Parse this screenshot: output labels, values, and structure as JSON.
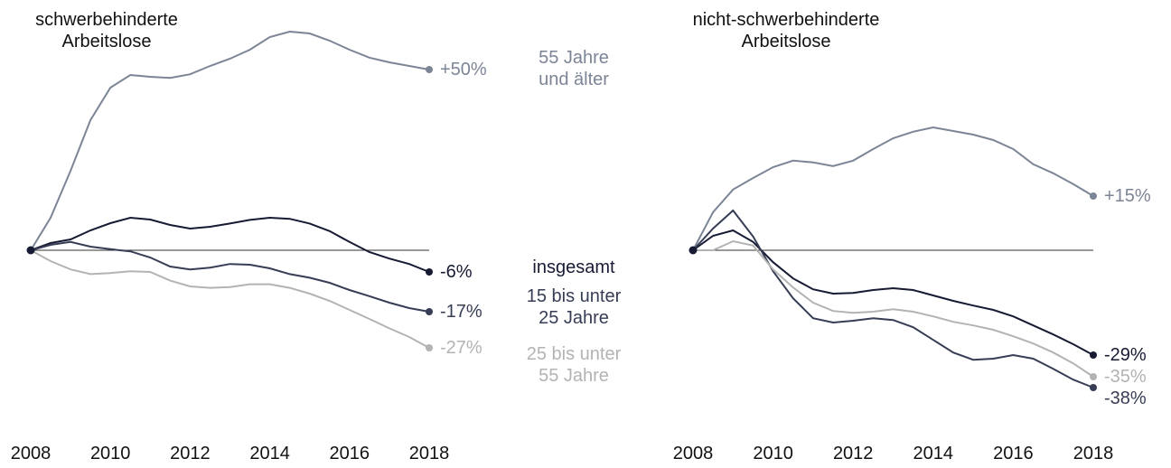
{
  "chart_data": [
    {
      "type": "line",
      "title": "schwerbehinderte\nArbeitslose",
      "x": [
        2008,
        2008.5,
        2009,
        2009.5,
        2010,
        2010.5,
        2011,
        2011.5,
        2012,
        2012.5,
        2013,
        2013.5,
        2014,
        2014.5,
        2015,
        2015.5,
        2016,
        2016.5,
        2017,
        2017.5,
        2018
      ],
      "xlim": [
        2008,
        2018
      ],
      "xticks": [
        2008,
        2010,
        2012,
        2014,
        2016,
        2018
      ],
      "ylim": [
        -40,
        65
      ],
      "series": [
        {
          "name": "55 Jahre\nund älter",
          "color": "#7c8596",
          "values": [
            0,
            9,
            22,
            36,
            45,
            48.5,
            48,
            47.7,
            48.7,
            51,
            53,
            55.5,
            59,
            60.5,
            60,
            58,
            55.5,
            53.3,
            52,
            51,
            50
          ],
          "value_labels": [
            null,
            null,
            null,
            null,
            null,
            null,
            null,
            null,
            null,
            null,
            null,
            null,
            null,
            null,
            null,
            null,
            null,
            null,
            null,
            null,
            "+50%"
          ]
        },
        {
          "name": "insgesamt",
          "color": "#161a33",
          "values": [
            0,
            2,
            3,
            5.5,
            7.5,
            9,
            8.5,
            7,
            6,
            6.5,
            7.4,
            8.4,
            9,
            8.7,
            7.4,
            5.3,
            2.3,
            -0.5,
            -2.3,
            -3.8,
            -6
          ],
          "value_labels": [
            null,
            null,
            null,
            null,
            null,
            null,
            null,
            null,
            null,
            null,
            null,
            null,
            null,
            null,
            null,
            null,
            null,
            null,
            null,
            null,
            "-6%"
          ]
        },
        {
          "name": "15 bis unter\n25 Jahre",
          "color": "#363d55",
          "values": [
            0,
            1.5,
            2.3,
            1,
            0.3,
            -0.3,
            -2,
            -4.5,
            -5.3,
            -4.8,
            -3.8,
            -4,
            -5,
            -6.6,
            -7.6,
            -9,
            -11,
            -12.7,
            -14.5,
            -16,
            -17
          ],
          "value_labels": [
            null,
            null,
            null,
            null,
            null,
            null,
            null,
            null,
            null,
            null,
            null,
            null,
            null,
            null,
            null,
            null,
            null,
            null,
            null,
            null,
            "-17%"
          ]
        },
        {
          "name": "25 bis unter\n55 Jahre",
          "color": "#b3b3b3",
          "values": [
            0,
            -3,
            -5.3,
            -6.6,
            -6.3,
            -5.8,
            -6,
            -8.4,
            -10,
            -10.4,
            -10.2,
            -9.4,
            -9.4,
            -10.4,
            -12,
            -14,
            -16.5,
            -19,
            -21.6,
            -24,
            -27
          ],
          "value_labels": [
            null,
            null,
            null,
            null,
            null,
            null,
            null,
            null,
            null,
            null,
            null,
            null,
            null,
            null,
            null,
            null,
            null,
            null,
            null,
            null,
            "-27%"
          ]
        }
      ]
    },
    {
      "type": "line",
      "title": "nicht-schwerbehinderte\nArbeitslose",
      "x": [
        2008,
        2008.5,
        2009,
        2009.5,
        2010,
        2010.5,
        2011,
        2011.5,
        2012,
        2012.5,
        2013,
        2013.5,
        2014,
        2014.5,
        2015,
        2015.5,
        2016,
        2016.5,
        2017,
        2017.5,
        2018
      ],
      "xlim": [
        2008,
        2018
      ],
      "xticks": [
        2008,
        2010,
        2012,
        2014,
        2016,
        2018
      ],
      "ylim": [
        -40,
        65
      ],
      "series": [
        {
          "color": "#7c8596",
          "values": [
            0,
            10.5,
            16.8,
            20,
            23,
            24.8,
            24.3,
            23.3,
            24.8,
            28,
            31,
            32.8,
            34,
            33,
            32,
            30.5,
            28,
            23.8,
            21.3,
            18.3,
            15
          ],
          "value_labels": [
            null,
            null,
            null,
            null,
            null,
            null,
            null,
            null,
            null,
            null,
            null,
            null,
            null,
            null,
            null,
            null,
            null,
            null,
            null,
            null,
            "+15%"
          ]
        },
        {
          "color": "#161a33",
          "values": [
            0,
            4,
            5.5,
            2.3,
            -3.3,
            -7.8,
            -10.8,
            -12,
            -11.8,
            -11,
            -10.5,
            -11,
            -12.5,
            -14,
            -15.3,
            -16.5,
            -18.3,
            -20.8,
            -23.3,
            -26,
            -29
          ],
          "value_labels": [
            null,
            null,
            null,
            null,
            null,
            null,
            null,
            null,
            null,
            null,
            null,
            null,
            null,
            null,
            null,
            null,
            null,
            null,
            null,
            null,
            "-29%"
          ]
        },
        {
          "color": "#363d55",
          "values": [
            0,
            6,
            11,
            3.8,
            -5.8,
            -13.3,
            -18.8,
            -20,
            -19.5,
            -18.8,
            -19.3,
            -21.3,
            -24.8,
            -28.3,
            -30.3,
            -30,
            -29,
            -30,
            -32.8,
            -35.8,
            -38
          ],
          "value_labels": [
            null,
            null,
            null,
            null,
            null,
            null,
            null,
            null,
            null,
            null,
            null,
            null,
            null,
            null,
            null,
            null,
            null,
            null,
            null,
            null,
            "-38%"
          ]
        },
        {
          "color": "#b3b3b3",
          "values": [
            0,
            0,
            2.5,
            1.3,
            -5.3,
            -10.3,
            -14.5,
            -16.8,
            -17.3,
            -17,
            -16.3,
            -17,
            -18.3,
            -19.8,
            -20.8,
            -22,
            -23.8,
            -25.8,
            -28.3,
            -31.3,
            -35
          ],
          "value_labels": [
            null,
            null,
            null,
            null,
            null,
            null,
            null,
            null,
            null,
            null,
            null,
            null,
            null,
            null,
            null,
            null,
            null,
            null,
            null,
            null,
            "-35%"
          ]
        }
      ]
    }
  ]
}
